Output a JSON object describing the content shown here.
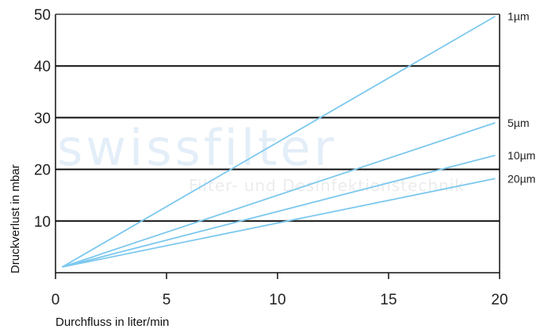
{
  "watermark": {
    "brand": "swissfilter",
    "tagline": "Filter- und Desinfektionstechnik"
  },
  "chart_data": {
    "type": "line",
    "title": "",
    "xlabel": "Durchfluss in liter/min",
    "ylabel": "Druckverlust in mbar",
    "xlim": [
      0,
      20
    ],
    "ylim": [
      0,
      50
    ],
    "xticks": [
      0,
      5,
      10,
      15,
      20
    ],
    "yticks": [
      10,
      20,
      30,
      40,
      50
    ],
    "grid": "horizontal",
    "legend": "right-edge labels",
    "line_color": "#7cc8ef",
    "series": [
      {
        "name": "1µm",
        "x": [
          0.3,
          19.8
        ],
        "y": [
          1.1,
          49.6
        ]
      },
      {
        "name": "5µm",
        "x": [
          0.3,
          19.8
        ],
        "y": [
          1.1,
          29.0
        ]
      },
      {
        "name": "10µm",
        "x": [
          0.3,
          19.8
        ],
        "y": [
          1.1,
          22.7
        ]
      },
      {
        "name": "20µm",
        "x": [
          0.3,
          19.8
        ],
        "y": [
          1.1,
          18.2
        ]
      }
    ]
  }
}
